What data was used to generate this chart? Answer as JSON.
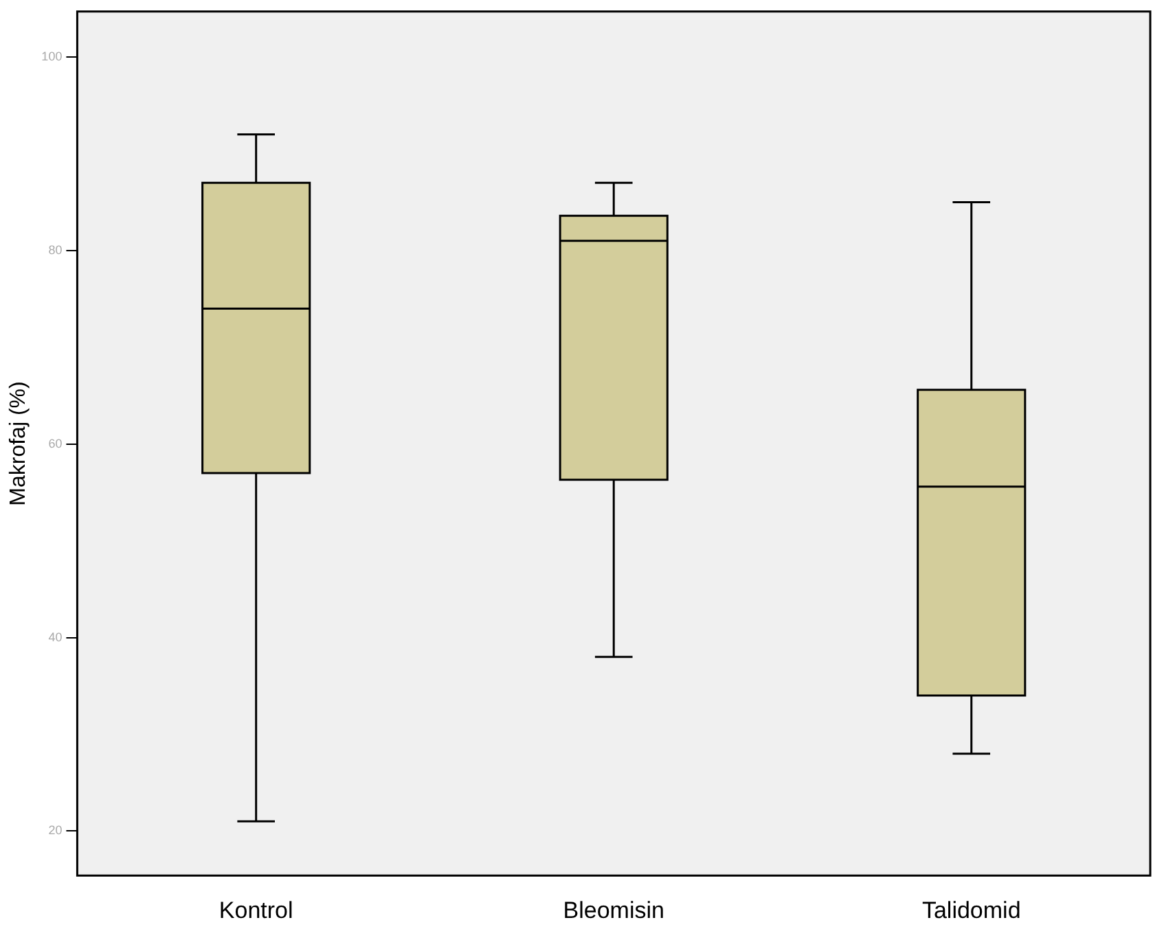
{
  "chart_data": {
    "type": "box",
    "ylabel": "Makrofaj (%)",
    "categories": [
      "Kontrol",
      "Bleomisin",
      "Talidomid"
    ],
    "color": "#d3cd9b",
    "boxes": [
      {
        "low": 21,
        "q1": 57,
        "median": 74,
        "q3": 87,
        "high": 92
      },
      {
        "low": 38,
        "q1": 56.3,
        "median": 81,
        "q3": 83.6,
        "high": 87
      },
      {
        "low": 28,
        "q1": 34,
        "median": 55.6,
        "q3": 65.6,
        "high": 85
      }
    ],
    "ylim": [
      15.4,
      104.7
    ],
    "yticks": [
      20,
      40,
      60,
      80,
      100
    ],
    "grid": false
  }
}
